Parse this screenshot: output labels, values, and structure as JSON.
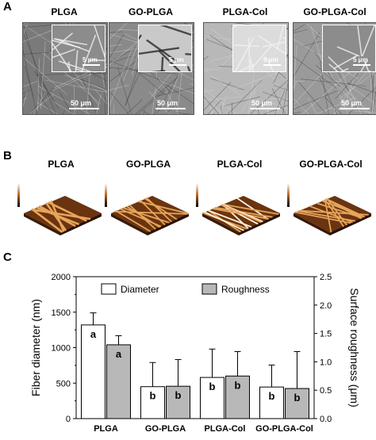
{
  "panels": {
    "a": "A",
    "b": "B",
    "c": "C"
  },
  "sem": {
    "samples": [
      {
        "name": "PLGA",
        "scale_large": "50 μm",
        "scale_small": "5 μm",
        "tone": "#7a7a7a"
      },
      {
        "name": "GO-PLGA",
        "scale_large": "50 μm",
        "scale_small": "5 μm",
        "tone": "#8a8a8a"
      },
      {
        "name": "PLGA-Col",
        "scale_large": "50 μm",
        "scale_small": "5 μm",
        "tone": "#b8b8b8"
      },
      {
        "name": "GO-PLGA-Col",
        "scale_large": "50 μm",
        "scale_small": "5 μm",
        "tone": "#9a9a9a"
      }
    ]
  },
  "afm": {
    "samples": [
      "PLGA",
      "GO-PLGA",
      "PLGA-Col",
      "GO-PLGA-Col"
    ]
  },
  "chart_data": {
    "type": "bar",
    "categories": [
      "PLGA",
      "GO-PLGA",
      "PLGA-Col",
      "GO-PLGA-Col"
    ],
    "series": [
      {
        "name": "Diameter",
        "values": [
          1320,
          450,
          580,
          445
        ],
        "errors": [
          170,
          340,
          400,
          310
        ],
        "letters": [
          "a",
          "b",
          "b",
          "b"
        ],
        "color": "#ffffff",
        "axis": "left"
      },
      {
        "name": "Roughness",
        "values": [
          1.3,
          0.57,
          0.75,
          0.53
        ],
        "errors": [
          0.16,
          0.47,
          0.43,
          0.65
        ],
        "letters": [
          "a",
          "b",
          "b",
          "b"
        ],
        "color": "#b8b8b8",
        "axis": "right"
      }
    ],
    "ylabel": "Fiber diameter (nm)",
    "y2label": "Surface roughness (μm)",
    "ylim": [
      0,
      2000
    ],
    "y2lim": [
      0,
      2.5
    ],
    "yticks": [
      "0",
      "500",
      "1000",
      "1500",
      "2000"
    ],
    "y2ticks": [
      "0.0",
      "0.5",
      "1.0",
      "1.5",
      "2.0",
      "2.5"
    ],
    "legend_placement": "top-center"
  }
}
